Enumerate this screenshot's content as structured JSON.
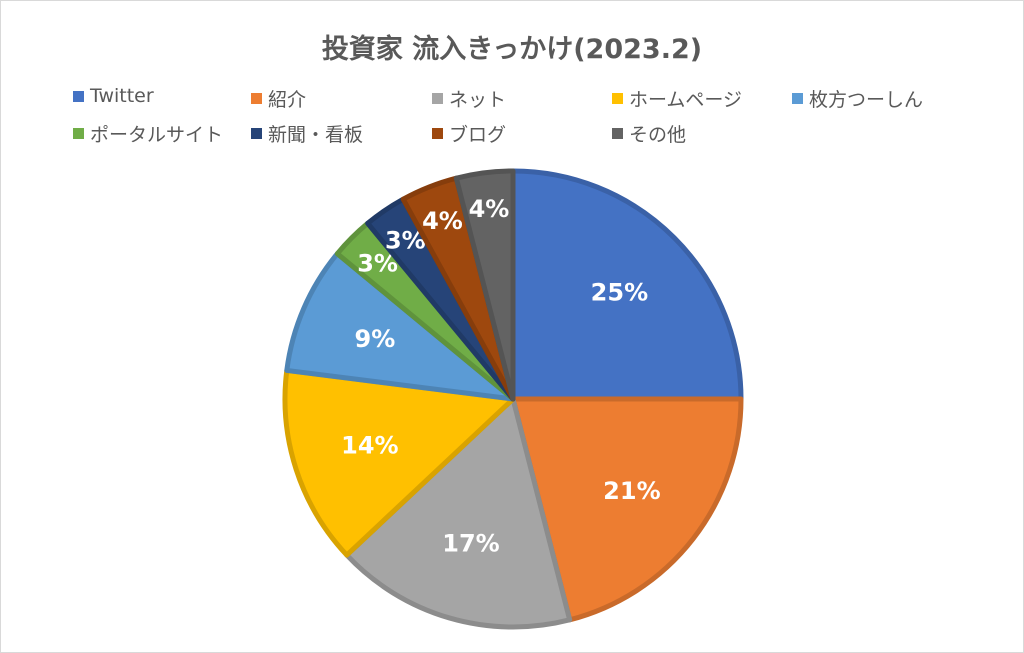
{
  "chart_data": {
    "type": "pie",
    "title": "投資家 流入きっかけ(2023.2)",
    "legend_position": "top",
    "slices": [
      {
        "label": "Twitter",
        "value": 25,
        "value_label": "25%",
        "color": "#4472C4"
      },
      {
        "label": "紹介",
        "value": 21,
        "value_label": "21%",
        "color": "#ED7D31"
      },
      {
        "label": "ネット",
        "value": 17,
        "value_label": "17%",
        "color": "#A5A5A5"
      },
      {
        "label": "ホームページ",
        "value": 14,
        "value_label": "14%",
        "color": "#FFC000"
      },
      {
        "label": "枚方つーしん",
        "value": 9,
        "value_label": "9%",
        "color": "#5B9BD5"
      },
      {
        "label": "ポータルサイト",
        "value": 3,
        "value_label": "3%",
        "color": "#70AD47"
      },
      {
        "label": "新聞・看板",
        "value": 3,
        "value_label": "3%",
        "color": "#264478"
      },
      {
        "label": "ブログ",
        "value": 4,
        "value_label": "4%",
        "color": "#9E480E"
      },
      {
        "label": "その他",
        "value": 4,
        "value_label": "4%",
        "color": "#636363"
      }
    ]
  }
}
